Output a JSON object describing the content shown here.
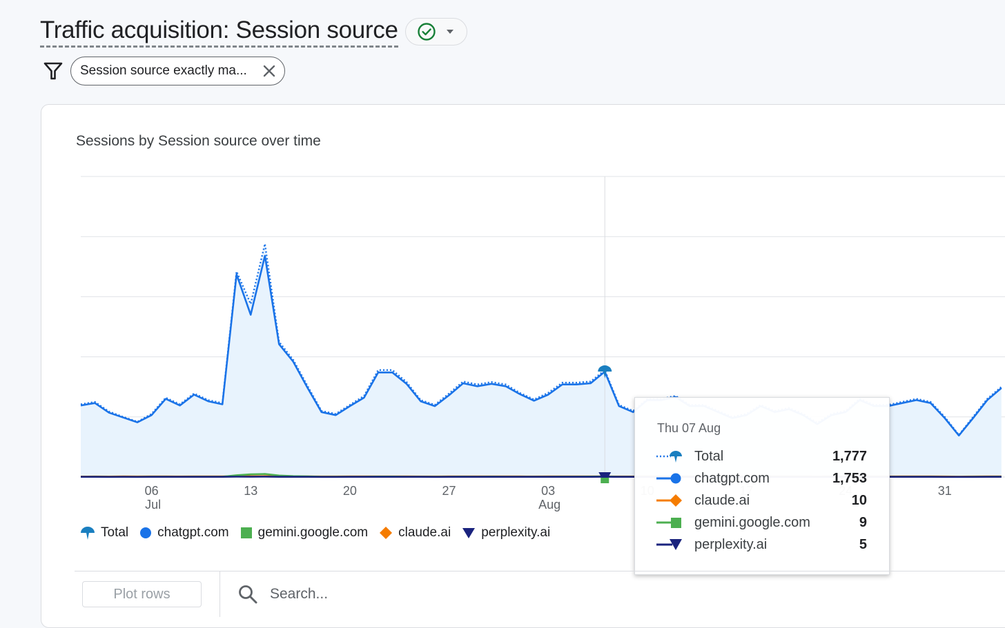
{
  "header": {
    "title": "Traffic acquisition: Session source",
    "filter_label": "Session source exactly ma..."
  },
  "card": {
    "chart_title": "Sessions by Session source over time"
  },
  "legend": [
    "Total",
    "chatgpt.com",
    "gemini.google.com",
    "claude.ai",
    "perplexity.ai"
  ],
  "tooltip": {
    "date": "Thu 07 Aug",
    "rows": [
      {
        "name": "Total",
        "value": "1,777"
      },
      {
        "name": "chatgpt.com",
        "value": "1,753"
      },
      {
        "name": "claude.ai",
        "value": "10"
      },
      {
        "name": "gemini.google.com",
        "value": "9"
      },
      {
        "name": "perplexity.ai",
        "value": "5"
      }
    ]
  },
  "controls": {
    "plot_rows": "Plot rows",
    "search_placeholder": "Search..."
  },
  "colors": {
    "total": "#1a73e8",
    "chatgpt": "#1a73e8",
    "claude": "#f57c00",
    "gemini": "#4caf50",
    "perplexity": "#1a237e",
    "area_fill": "#e8f3fd",
    "check_green": "#188038"
  },
  "chart_data": {
    "type": "line",
    "title": "Sessions by Session source over time",
    "x_tick_labels": [
      {
        "date": "2025-07-06",
        "day": "06",
        "month": "Jul"
      },
      {
        "date": "2025-07-13",
        "day": "13",
        "month": ""
      },
      {
        "date": "2025-07-20",
        "day": "20",
        "month": ""
      },
      {
        "date": "2025-07-27",
        "day": "27",
        "month": ""
      },
      {
        "date": "2025-08-03",
        "day": "03",
        "month": "Aug"
      },
      {
        "date": "2025-08-10",
        "day": "10",
        "month": ""
      },
      {
        "date": "2025-08-17",
        "day": "17",
        "month": ""
      },
      {
        "date": "2025-08-24",
        "day": "24",
        "month": ""
      },
      {
        "date": "2025-08-31",
        "day": "31",
        "month": ""
      }
    ],
    "ylim": [
      0,
      5000
    ],
    "grid": true,
    "highlight_date": "2025-08-07",
    "x": [
      "2025-07-01",
      "2025-07-02",
      "2025-07-03",
      "2025-07-04",
      "2025-07-05",
      "2025-07-06",
      "2025-07-07",
      "2025-07-08",
      "2025-07-09",
      "2025-07-10",
      "2025-07-11",
      "2025-07-12",
      "2025-07-13",
      "2025-07-14",
      "2025-07-15",
      "2025-07-16",
      "2025-07-17",
      "2025-07-18",
      "2025-07-19",
      "2025-07-20",
      "2025-07-21",
      "2025-07-22",
      "2025-07-23",
      "2025-07-24",
      "2025-07-25",
      "2025-07-26",
      "2025-07-27",
      "2025-07-28",
      "2025-07-29",
      "2025-07-30",
      "2025-07-31",
      "2025-08-01",
      "2025-08-02",
      "2025-08-03",
      "2025-08-04",
      "2025-08-05",
      "2025-08-06",
      "2025-08-07",
      "2025-08-08",
      "2025-08-09",
      "2025-08-10",
      "2025-08-11",
      "2025-08-12",
      "2025-08-13",
      "2025-08-14",
      "2025-08-15",
      "2025-08-16",
      "2025-08-17",
      "2025-08-18",
      "2025-08-19",
      "2025-08-20",
      "2025-08-21",
      "2025-08-22",
      "2025-08-23",
      "2025-08-24",
      "2025-08-25",
      "2025-08-26",
      "2025-08-27",
      "2025-08-28",
      "2025-08-29",
      "2025-08-30",
      "2025-08-31",
      "2025-09-01",
      "2025-09-02",
      "2025-09-03",
      "2025-09-04"
    ],
    "series": [
      {
        "name": "Total",
        "values": [
          1210,
          1250,
          1090,
          1000,
          920,
          1050,
          1320,
          1210,
          1390,
          1280,
          1230,
          3420,
          2880,
          3880,
          2250,
          1950,
          1520,
          1100,
          1050,
          1200,
          1350,
          1780,
          1780,
          1580,
          1280,
          1200,
          1390,
          1590,
          1540,
          1580,
          1540,
          1400,
          1290,
          1400,
          1570,
          1570,
          1590,
          1777,
          1200,
          1100,
          1300,
          1300,
          1350,
          1200,
          1200,
          1100,
          1000,
          1050,
          1200,
          1100,
          1150,
          1050,
          900,
          1050,
          1100,
          1300,
          1200,
          1200,
          1250,
          1300,
          1250,
          1000,
          700,
          1000,
          1300,
          1500
        ]
      },
      {
        "name": "chatgpt.com",
        "values": [
          1190,
          1230,
          1070,
          990,
          910,
          1030,
          1300,
          1190,
          1370,
          1260,
          1210,
          3370,
          2700,
          3680,
          2210,
          1920,
          1490,
          1080,
          1030,
          1180,
          1320,
          1740,
          1740,
          1550,
          1260,
          1180,
          1360,
          1560,
          1510,
          1550,
          1510,
          1380,
          1270,
          1370,
          1540,
          1540,
          1560,
          1753,
          1180,
          1080,
          1280,
          1280,
          1330,
          1180,
          1180,
          1080,
          980,
          1030,
          1180,
          1080,
          1130,
          1030,
          880,
          1030,
          1080,
          1280,
          1180,
          1180,
          1230,
          1280,
          1230,
          980,
          690,
          980,
          1280,
          1480
        ]
      },
      {
        "name": "claude.ai",
        "values": [
          8,
          9,
          8,
          10,
          9,
          11,
          10,
          9,
          10,
          11,
          10,
          15,
          14,
          16,
          12,
          11,
          10,
          9,
          9,
          10,
          10,
          11,
          12,
          10,
          9,
          9,
          10,
          11,
          10,
          10,
          11,
          10,
          9,
          10,
          11,
          10,
          11,
          10,
          9,
          9,
          10,
          10,
          10,
          9,
          9,
          9,
          8,
          9,
          9,
          9,
          9,
          9,
          8,
          9,
          9,
          10,
          9,
          9,
          10,
          10,
          10,
          9,
          7,
          9,
          10,
          11
        ]
      },
      {
        "name": "gemini.google.com",
        "values": [
          4,
          5,
          4,
          4,
          3,
          5,
          5,
          4,
          6,
          5,
          5,
          30,
          45,
          50,
          25,
          15,
          10,
          5,
          5,
          5,
          6,
          8,
          8,
          6,
          5,
          5,
          6,
          7,
          6,
          7,
          6,
          6,
          5,
          6,
          7,
          7,
          8,
          9,
          6,
          5,
          6,
          6,
          7,
          5,
          5,
          5,
          4,
          5,
          5,
          5,
          5,
          5,
          4,
          5,
          5,
          6,
          5,
          5,
          6,
          6,
          6,
          4,
          3,
          5,
          6,
          7
        ]
      },
      {
        "name": "perplexity.ai",
        "values": [
          3,
          3,
          2,
          3,
          2,
          3,
          4,
          3,
          4,
          3,
          3,
          6,
          5,
          7,
          4,
          3,
          3,
          2,
          2,
          3,
          3,
          4,
          4,
          3,
          3,
          2,
          3,
          4,
          3,
          4,
          3,
          3,
          3,
          3,
          4,
          4,
          4,
          5,
          3,
          3,
          3,
          3,
          4,
          3,
          3,
          3,
          2,
          3,
          3,
          3,
          3,
          3,
          2,
          3,
          3,
          3,
          3,
          3,
          3,
          3,
          3,
          2,
          2,
          2,
          3,
          4
        ]
      }
    ]
  }
}
